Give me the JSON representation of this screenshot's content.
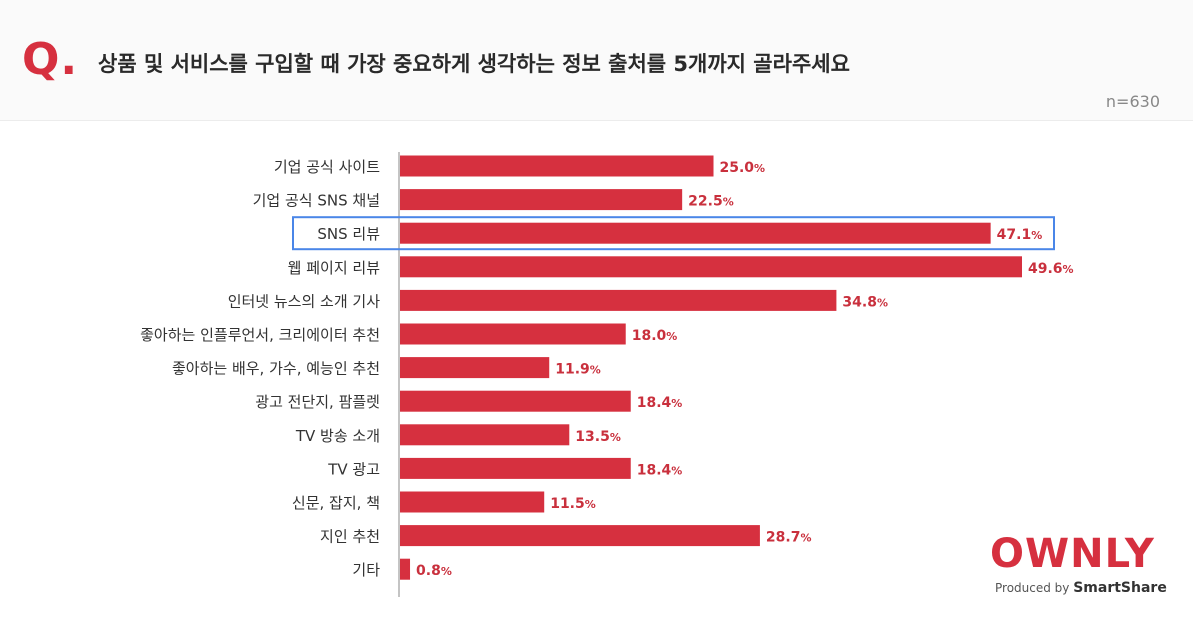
{
  "header": {
    "q_mark": "Q.",
    "question": "상품 및 서비스를 구입할 때 가장 중요하게 생각하는 정보 출처를 5개까지 골라주세요",
    "sample_size": "n=630"
  },
  "logo": {
    "word": "OWNLY",
    "produced_by": "Produced by",
    "brand": "SmartShare"
  },
  "colors": {
    "bar": "#d6303f",
    "label": "#333333",
    "value": "#c9303d",
    "highlight": "#4a86e8",
    "axis": "#888888"
  },
  "chart_data": {
    "type": "bar",
    "orientation": "horizontal",
    "categories": [
      "기업 공식 사이트",
      "기업 공식 SNS 채널",
      "SNS 리뷰",
      "웹 페이지 리뷰",
      "인터넷 뉴스의 소개 기사",
      "좋아하는 인플루언서, 크리에이터 추천",
      "좋아하는 배우, 가수, 예능인 추천",
      "광고 전단지, 팜플렛",
      "TV 방송 소개",
      "TV 광고",
      "신문, 잡지, 책",
      "지인 추천",
      "기타"
    ],
    "values": [
      25.0,
      22.5,
      47.1,
      49.6,
      34.8,
      18.0,
      11.9,
      18.4,
      13.5,
      18.4,
      11.5,
      28.7,
      0.8
    ],
    "value_labels": [
      "25.0",
      "22.5",
      "47.1",
      "49.6",
      "34.8",
      "18.0",
      "11.9",
      "18.4",
      "13.5",
      "18.4",
      "11.5",
      "28.7",
      "0.8"
    ],
    "unit": "%",
    "highlighted_category": "SNS 리뷰",
    "xlim": [
      0,
      49.6
    ],
    "grid": false,
    "legend": "none"
  }
}
